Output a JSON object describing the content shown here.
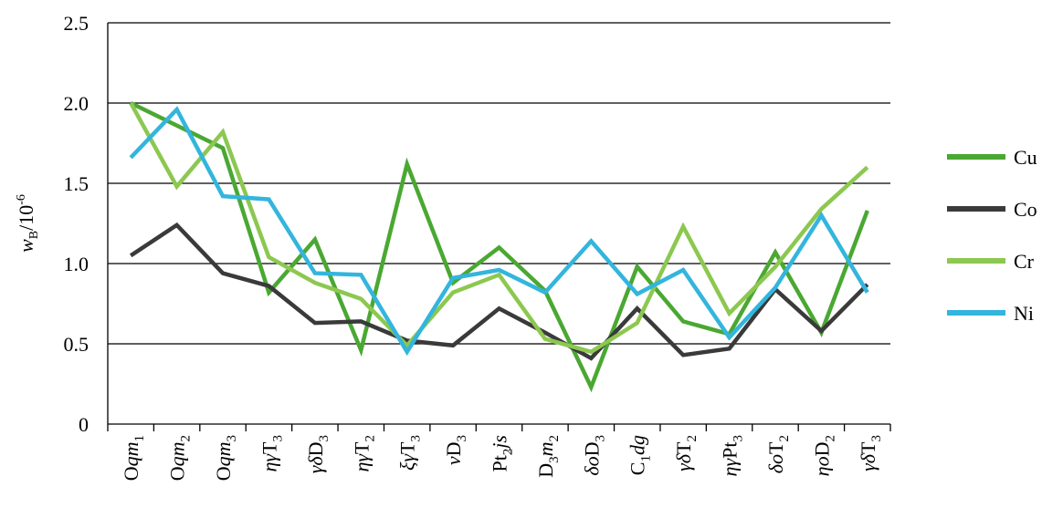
{
  "chart_data": {
    "type": "line",
    "ylabel": "w_B/10^-6",
    "ylabel_parts": {
      "main": "w",
      "sub": "B",
      "mid": "/10",
      "sup": "-6"
    },
    "ylim": [
      0,
      2.5
    ],
    "yticks": [
      {
        "value": 0,
        "label": "0"
      },
      {
        "value": 0.5,
        "label": "0.5"
      },
      {
        "value": 1.0,
        "label": "1.0"
      },
      {
        "value": 1.5,
        "label": "1.5"
      },
      {
        "value": 2.0,
        "label": "2.0"
      },
      {
        "value": 2.5,
        "label": "2.5"
      }
    ],
    "grid": true,
    "legend_position": "right",
    "categories": [
      [
        {
          "t": "O",
          "s": "n"
        },
        {
          "t": "qm",
          "s": "i"
        },
        {
          "t": "1",
          "s": "sub"
        }
      ],
      [
        {
          "t": "O",
          "s": "n"
        },
        {
          "t": "qm",
          "s": "i"
        },
        {
          "t": "2",
          "s": "sub"
        }
      ],
      [
        {
          "t": "O",
          "s": "n"
        },
        {
          "t": "qm",
          "s": "i"
        },
        {
          "t": "3",
          "s": "sub"
        }
      ],
      [
        {
          "t": "ηγ",
          "s": "i"
        },
        {
          "t": "T",
          "s": "n"
        },
        {
          "t": "3",
          "s": "sub"
        }
      ],
      [
        {
          "t": "γδ",
          "s": "i"
        },
        {
          "t": "D",
          "s": "n"
        },
        {
          "t": "3",
          "s": "sub"
        }
      ],
      [
        {
          "t": "ηγ",
          "s": "i"
        },
        {
          "t": "T",
          "s": "n"
        },
        {
          "t": "2",
          "s": "sub"
        }
      ],
      [
        {
          "t": "ξγ",
          "s": "i"
        },
        {
          "t": "T",
          "s": "n"
        },
        {
          "t": "3",
          "s": "sub"
        }
      ],
      [
        {
          "t": "ν",
          "s": "i"
        },
        {
          "t": "D",
          "s": "n"
        },
        {
          "t": "3",
          "s": "sub"
        }
      ],
      [
        {
          "t": "Pt",
          "s": "n"
        },
        {
          "t": "2",
          "s": "sub"
        },
        {
          "t": "js",
          "s": "i"
        }
      ],
      [
        {
          "t": "D",
          "s": "n"
        },
        {
          "t": "3",
          "s": "sub"
        },
        {
          "t": "m",
          "s": "i"
        },
        {
          "t": "2",
          "s": "sub"
        }
      ],
      [
        {
          "t": "δο",
          "s": "i"
        },
        {
          "t": "D",
          "s": "n"
        },
        {
          "t": "3",
          "s": "sub"
        }
      ],
      [
        {
          "t": "C",
          "s": "n"
        },
        {
          "t": "1",
          "s": "sub"
        },
        {
          "t": "dg",
          "s": "i"
        }
      ],
      [
        {
          "t": "γδ",
          "s": "i"
        },
        {
          "t": "T",
          "s": "n"
        },
        {
          "t": "2",
          "s": "sub"
        }
      ],
      [
        {
          "t": "ηγ",
          "s": "i"
        },
        {
          "t": "Pt",
          "s": "n"
        },
        {
          "t": "3",
          "s": "sub"
        }
      ],
      [
        {
          "t": "δο",
          "s": "i"
        },
        {
          "t": "T",
          "s": "n"
        },
        {
          "t": "2",
          "s": "sub"
        }
      ],
      [
        {
          "t": "ηο",
          "s": "i"
        },
        {
          "t": "D",
          "s": "n"
        },
        {
          "t": "2",
          "s": "sub"
        }
      ],
      [
        {
          "t": "γδ",
          "s": "i"
        },
        {
          "t": "T",
          "s": "n"
        },
        {
          "t": "3",
          "s": "sub"
        }
      ]
    ],
    "series": [
      {
        "name": "Cu",
        "color": "#4aa832",
        "values": [
          2.0,
          1.86,
          1.72,
          0.82,
          1.15,
          0.46,
          1.62,
          0.88,
          1.1,
          0.83,
          0.23,
          0.98,
          0.64,
          0.56,
          1.07,
          0.57,
          1.33
        ]
      },
      {
        "name": "Co",
        "color": "#3a3a3a",
        "values": [
          1.05,
          1.24,
          0.94,
          0.86,
          0.63,
          0.64,
          0.52,
          0.49,
          0.72,
          0.57,
          0.41,
          0.72,
          0.43,
          0.47,
          0.84,
          0.58,
          0.87
        ]
      },
      {
        "name": "Cr",
        "color": "#8cc850",
        "values": [
          2.0,
          1.48,
          1.82,
          1.04,
          0.88,
          0.78,
          0.49,
          0.82,
          0.93,
          0.53,
          0.45,
          0.63,
          1.23,
          0.69,
          0.98,
          1.34,
          1.6
        ]
      },
      {
        "name": "Ni",
        "color": "#33b5dd",
        "values": [
          1.66,
          1.96,
          1.42,
          1.4,
          0.94,
          0.93,
          0.45,
          0.91,
          0.96,
          0.82,
          1.14,
          0.81,
          0.96,
          0.54,
          0.85,
          1.3,
          0.82
        ]
      }
    ]
  }
}
